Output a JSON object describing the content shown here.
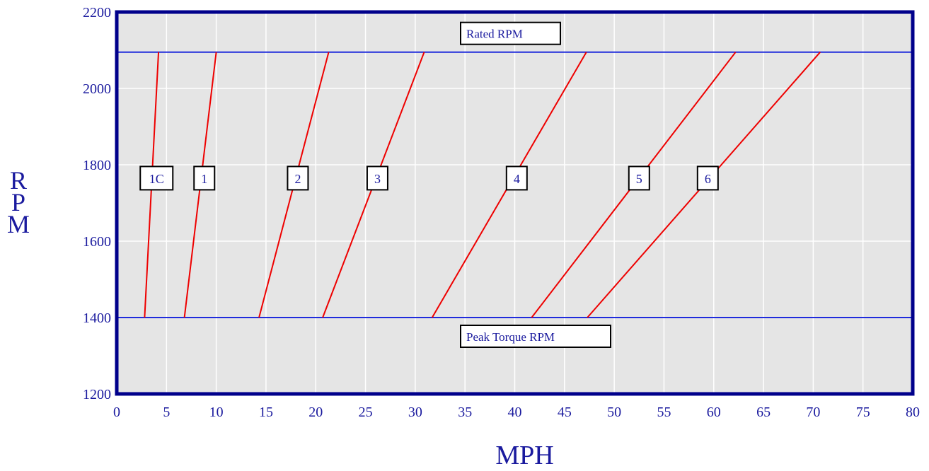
{
  "chart_data": {
    "type": "line",
    "title": "",
    "xlabel": "MPH",
    "ylabel": "RPM",
    "xlim": [
      0,
      80
    ],
    "ylim": [
      1200,
      2200
    ],
    "xticks": [
      "0",
      "5",
      "10",
      "15",
      "20",
      "25",
      "30",
      "35",
      "40",
      "45",
      "50",
      "55",
      "60",
      "65",
      "70",
      "75",
      "80"
    ],
    "yticks": [
      "1200",
      "1400",
      "1600",
      "1800",
      "2000",
      "2200"
    ],
    "grid": true,
    "reference_lines": [
      {
        "label": "Rated RPM",
        "y": 2095,
        "color": "#1f2bdc"
      },
      {
        "label": "Peak Torque RPM",
        "y": 1400,
        "color": "#1f2bdc"
      }
    ],
    "series": [
      {
        "name": "1C",
        "x": [
          2.8,
          4.2
        ],
        "y": [
          1400,
          2095
        ],
        "label_at": [
          4.0,
          1765
        ]
      },
      {
        "name": "1",
        "x": [
          6.8,
          10.0
        ],
        "y": [
          1400,
          2095
        ],
        "label_at": [
          8.8,
          1765
        ]
      },
      {
        "name": "2",
        "x": [
          14.3,
          21.3
        ],
        "y": [
          1400,
          2095
        ],
        "label_at": [
          18.2,
          1765
        ]
      },
      {
        "name": "3",
        "x": [
          20.7,
          30.9
        ],
        "y": [
          1400,
          2095
        ],
        "label_at": [
          26.2,
          1765
        ]
      },
      {
        "name": "4",
        "x": [
          31.7,
          47.2
        ],
        "y": [
          1400,
          2095
        ],
        "label_at": [
          40.2,
          1765
        ]
      },
      {
        "name": "5",
        "x": [
          41.7,
          62.2
        ],
        "y": [
          1400,
          2095
        ],
        "label_at": [
          52.5,
          1765
        ]
      },
      {
        "name": "6",
        "x": [
          47.3,
          70.7
        ],
        "y": [
          1400,
          2095
        ],
        "label_at": [
          59.4,
          1765
        ]
      }
    ],
    "colors": {
      "series": "#ee0000",
      "plot_bg": "#e5e5e5",
      "frame": "#00008b",
      "text": "#1a1a9e",
      "grid": "#ffffff"
    }
  }
}
